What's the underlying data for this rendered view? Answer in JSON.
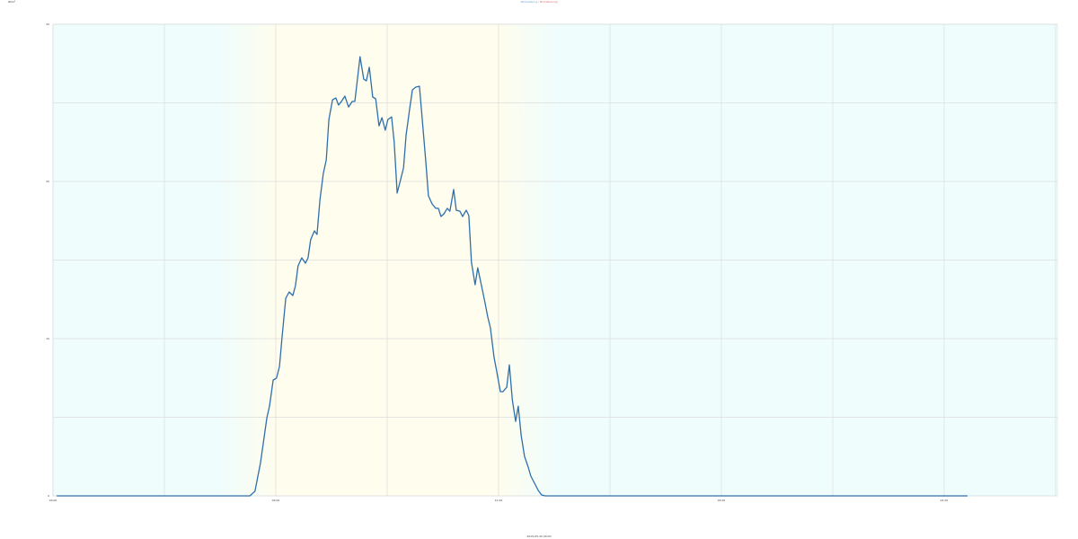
{
  "corner_label": "W/m²",
  "title": {
    "part1": "Wirkleistung",
    "separator": " / ",
    "part2": "Blindleistung",
    "color1": "#6fa0d8",
    "color2": "#e07070"
  },
  "chart_data": {
    "type": "line",
    "title": "Wirkleistung / Blindleistung",
    "xlabel": "2019-05-20 00:00",
    "ylabel": "",
    "xlim": [
      0,
      27.05
    ],
    "ylim": [
      0,
      30
    ],
    "grid": true,
    "x_ticks": [
      {
        "value": 0,
        "label": "00:00"
      },
      {
        "value": 6,
        "label": "06:00"
      },
      {
        "value": 12,
        "label": "12:00"
      },
      {
        "value": 18,
        "label": "18:00"
      },
      {
        "value": 24,
        "label": "24:00"
      }
    ],
    "y_ticks": [
      {
        "value": 0,
        "label": "0"
      },
      {
        "value": 10,
        "label": "10"
      },
      {
        "value": 20,
        "label": "20"
      },
      {
        "value": 30,
        "label": "30"
      }
    ],
    "colors": {
      "line": "#2f6fab",
      "night": "#effdfd",
      "day": "#fefdee",
      "grid": "#dcdcdc"
    },
    "series": [
      {
        "x": [
          0.1,
          5.3,
          5.44,
          5.59,
          5.76,
          5.83,
          5.93,
          6.02,
          6.1,
          6.17,
          6.27,
          6.36,
          6.46,
          6.53,
          6.6,
          6.7,
          6.8,
          6.87,
          6.94,
          7.04,
          7.11,
          7.19,
          7.28,
          7.36,
          7.43,
          7.53,
          7.62,
          7.69,
          7.77,
          7.86,
          7.96,
          8.06,
          8.13,
          8.2,
          8.27,
          8.37,
          8.44,
          8.52,
          8.61,
          8.69,
          8.78,
          8.86,
          8.95,
          9.02,
          9.12,
          9.19,
          9.27,
          9.36,
          9.44,
          9.51,
          9.61,
          9.68,
          9.77,
          9.87,
          9.94,
          10.04,
          10.11,
          10.21,
          10.31,
          10.38,
          10.45,
          10.53,
          10.62,
          10.69,
          10.79,
          10.86,
          10.96,
          11.03,
          11.13,
          11.2,
          11.27,
          11.37,
          11.44,
          11.54,
          11.64,
          11.71,
          11.78,
          11.88,
          11.95,
          12.05,
          12.12,
          12.22,
          12.29,
          12.37,
          12.46,
          12.53,
          12.61,
          12.7,
          12.8,
          12.87,
          12.97,
          13.07,
          13.16,
          13.26,
          24.63
        ],
        "y": [
          0,
          0,
          0.29,
          2.11,
          4.97,
          5.71,
          7.37,
          7.49,
          8.23,
          10.11,
          12.57,
          12.97,
          12.74,
          13.37,
          14.63,
          15.14,
          14.8,
          15.14,
          16.29,
          16.86,
          16.63,
          18.86,
          20.51,
          21.37,
          23.94,
          25.2,
          25.31,
          24.86,
          25.09,
          25.43,
          24.74,
          25.09,
          25.09,
          26.51,
          27.94,
          26.51,
          26.4,
          27.26,
          25.37,
          25.26,
          23.54,
          24.06,
          23.26,
          23.94,
          24.11,
          22.51,
          19.26,
          20.11,
          20.86,
          22.97,
          24.69,
          25.83,
          26.0,
          26.06,
          24.11,
          21.26,
          19.09,
          18.57,
          18.29,
          18.29,
          17.77,
          17.94,
          18.29,
          18.11,
          19.49,
          18.17,
          18.11,
          17.77,
          18.17,
          17.83,
          14.86,
          13.43,
          14.51,
          13.37,
          12.23,
          11.37,
          10.69,
          8.8,
          7.94,
          6.63,
          6.63,
          6.91,
          8.34,
          6.11,
          4.74,
          5.71,
          3.83,
          2.51,
          1.83,
          1.26,
          0.8,
          0.34,
          0.06,
          0,
          0
        ]
      }
    ]
  }
}
